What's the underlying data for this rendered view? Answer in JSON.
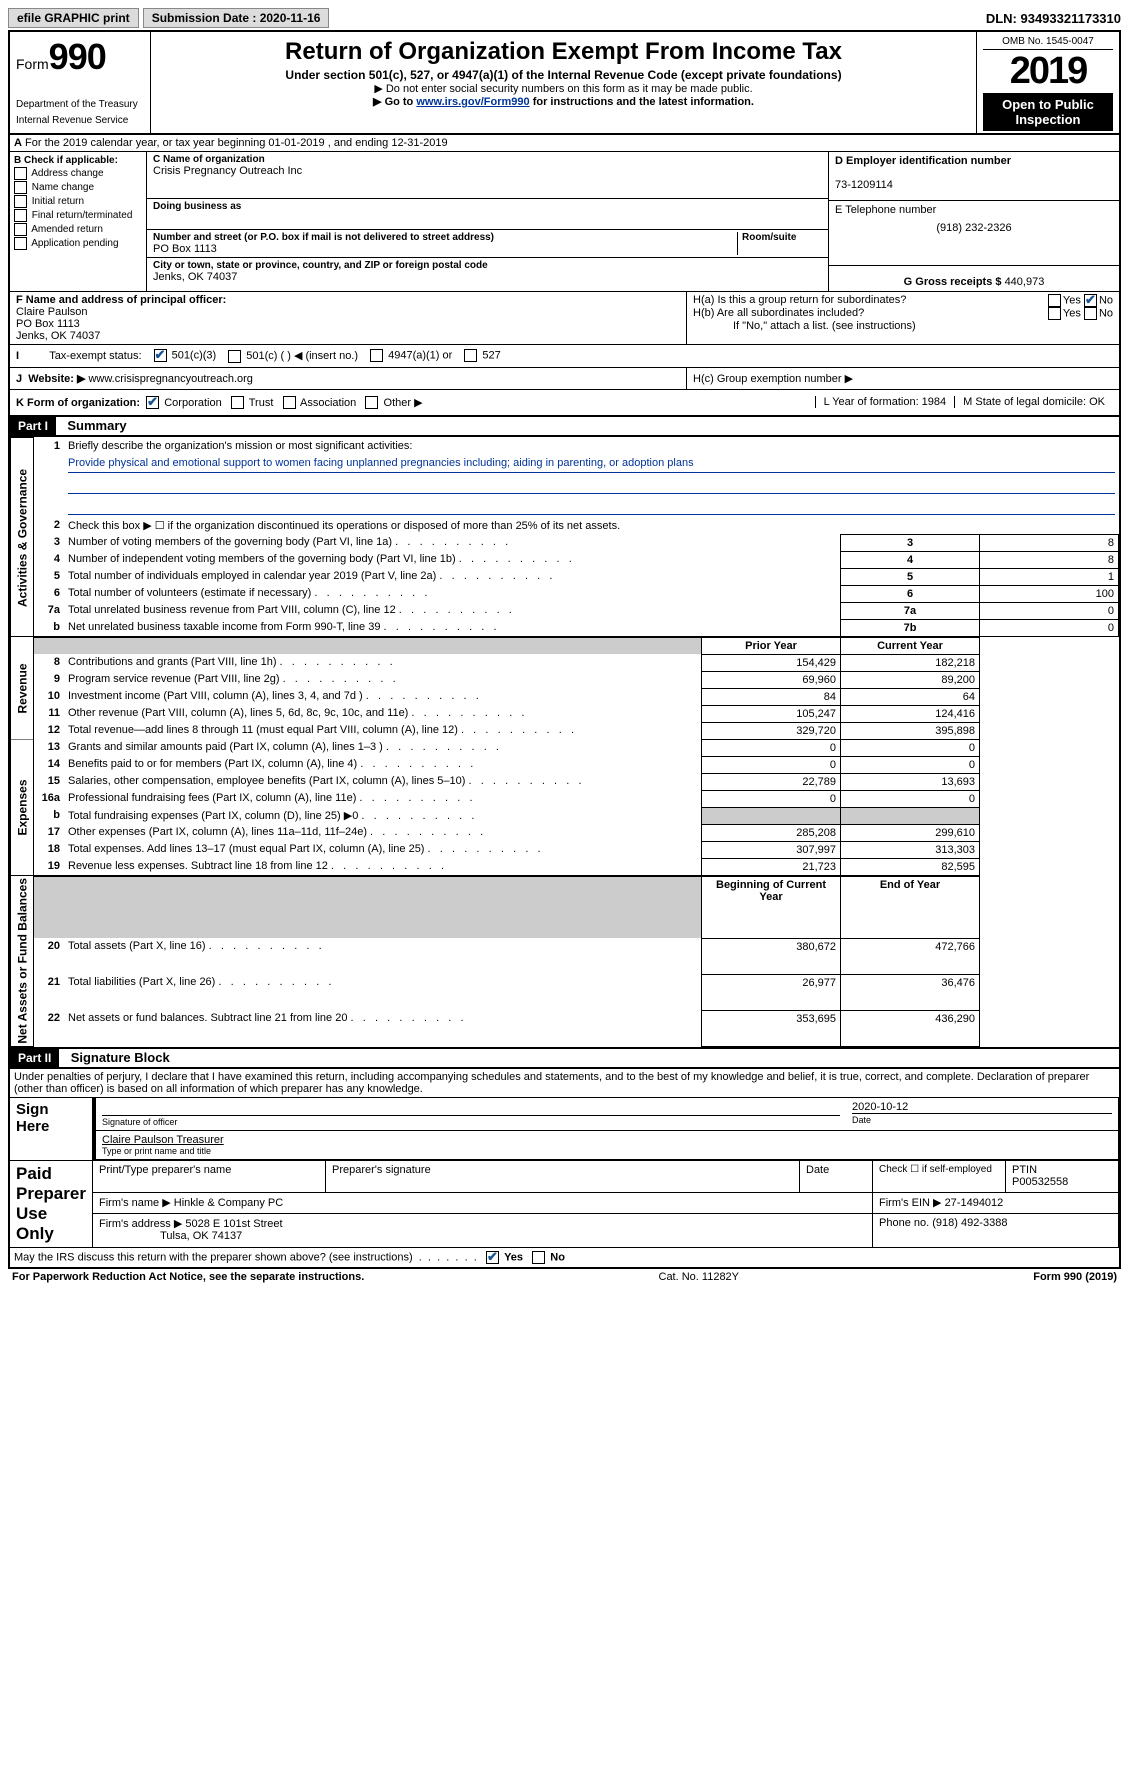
{
  "topbar": {
    "efile": "efile GRAPHIC print",
    "sub_label": "Submission Date : 2020-11-16",
    "dln": "DLN: 93493321173310"
  },
  "header": {
    "form_word": "Form",
    "form_num": "990",
    "dept1": "Department of the Treasury",
    "dept2": "Internal Revenue Service",
    "title": "Return of Organization Exempt From Income Tax",
    "sub1": "Under section 501(c), 527, or 4947(a)(1) of the Internal Revenue Code (except private foundations)",
    "sub2": "▶ Do not enter social security numbers on this form as it may be made public.",
    "sub3_pre": "▶ Go to ",
    "sub3_link": "www.irs.gov/Form990",
    "sub3_post": " for instructions and the latest information.",
    "omb": "OMB No. 1545-0047",
    "year": "2019",
    "open": "Open to Public Inspection"
  },
  "rowA": "For the 2019 calendar year, or tax year beginning 01-01-2019    , and ending 12-31-2019",
  "boxB": {
    "title": "B Check if applicable:",
    "items": [
      "Address change",
      "Name change",
      "Initial return",
      "Final return/terminated",
      "Amended return",
      "Application pending"
    ]
  },
  "boxC": {
    "c_lbl": "C Name of organization",
    "name": "Crisis Pregnancy Outreach Inc",
    "dba_lbl": "Doing business as",
    "addr_lbl": "Number and street (or P.O. box if mail is not delivered to street address)",
    "room_lbl": "Room/suite",
    "addr": "PO Box 1113",
    "city_lbl": "City or town, state or province, country, and ZIP or foreign postal code",
    "city": "Jenks, OK  74037"
  },
  "boxD": {
    "lbl": "D Employer identification number",
    "val": "73-1209114"
  },
  "boxE": {
    "lbl": "E Telephone number",
    "val": "(918) 232-2326"
  },
  "boxG": {
    "lbl": "G Gross receipts $",
    "val": "440,973"
  },
  "boxF": {
    "lbl": "F  Name and address of principal officer:",
    "name": "Claire Paulson",
    "addr1": "PO Box 1113",
    "addr2": "Jenks, OK  74037"
  },
  "boxH": {
    "a": "H(a)  Is this a group return for subordinates?",
    "b": "H(b)  Are all subordinates included?",
    "note": "If \"No,\" attach a list. (see instructions)",
    "c": "H(c)  Group exemption number ▶"
  },
  "rowI": {
    "lbl": "Tax-exempt status:",
    "opts": [
      "501(c)(3)",
      "501(c) (  ) ◀ (insert no.)",
      "4947(a)(1) or",
      "527"
    ]
  },
  "rowJ": {
    "lbl": "Website: ▶",
    "val": "  www.crisispregnancyoutreach.org"
  },
  "rowK": {
    "lbl": "K Form of organization:",
    "opts": [
      "Corporation",
      "Trust",
      "Association",
      "Other ▶"
    ],
    "L": "L Year of formation: 1984",
    "M": "M State of legal domicile: OK"
  },
  "part1": {
    "num": "Part I",
    "title": "Summary"
  },
  "summary": {
    "tab1": "Activities & Governance",
    "tab2": "Revenue",
    "tab3": "Expenses",
    "tab4": "Net Assets or Fund Balances",
    "q1": "Briefly describe the organization's mission or most significant activities:",
    "mission": "Provide physical and emotional support to women facing unplanned pregnancies including; aiding in parenting, or adoption plans",
    "q2": "Check this box ▶ ☐  if the organization discontinued its operations or disposed of more than 25% of its net assets.",
    "rows_gov": [
      {
        "n": "3",
        "t": "Number of voting members of the governing body (Part VI, line 1a)",
        "b": "3",
        "v": "8"
      },
      {
        "n": "4",
        "t": "Number of independent voting members of the governing body (Part VI, line 1b)",
        "b": "4",
        "v": "8"
      },
      {
        "n": "5",
        "t": "Total number of individuals employed in calendar year 2019 (Part V, line 2a)",
        "b": "5",
        "v": "1"
      },
      {
        "n": "6",
        "t": "Total number of volunteers (estimate if necessary)",
        "b": "6",
        "v": "100"
      },
      {
        "n": "7a",
        "t": "Total unrelated business revenue from Part VIII, column (C), line 12",
        "b": "7a",
        "v": "0"
      },
      {
        "n": "b",
        "t": "Net unrelated business taxable income from Form 990-T, line 39",
        "b": "7b",
        "v": "0"
      }
    ],
    "hdr_prior": "Prior Year",
    "hdr_curr": "Current Year",
    "rows_rev": [
      {
        "n": "8",
        "t": "Contributions and grants (Part VIII, line 1h)",
        "p": "154,429",
        "c": "182,218"
      },
      {
        "n": "9",
        "t": "Program service revenue (Part VIII, line 2g)",
        "p": "69,960",
        "c": "89,200"
      },
      {
        "n": "10",
        "t": "Investment income (Part VIII, column (A), lines 3, 4, and 7d )",
        "p": "84",
        "c": "64"
      },
      {
        "n": "11",
        "t": "Other revenue (Part VIII, column (A), lines 5, 6d, 8c, 9c, 10c, and 11e)",
        "p": "105,247",
        "c": "124,416"
      },
      {
        "n": "12",
        "t": "Total revenue—add lines 8 through 11 (must equal Part VIII, column (A), line 12)",
        "p": "329,720",
        "c": "395,898"
      }
    ],
    "rows_exp": [
      {
        "n": "13",
        "t": "Grants and similar amounts paid (Part IX, column (A), lines 1–3 )",
        "p": "0",
        "c": "0"
      },
      {
        "n": "14",
        "t": "Benefits paid to or for members (Part IX, column (A), line 4)",
        "p": "0",
        "c": "0"
      },
      {
        "n": "15",
        "t": "Salaries, other compensation, employee benefits (Part IX, column (A), lines 5–10)",
        "p": "22,789",
        "c": "13,693"
      },
      {
        "n": "16a",
        "t": "Professional fundraising fees (Part IX, column (A), line 11e)",
        "p": "0",
        "c": "0"
      },
      {
        "n": "b",
        "t": "Total fundraising expenses (Part IX, column (D), line 25) ▶0",
        "p": "",
        "c": "",
        "gray": true
      },
      {
        "n": "17",
        "t": "Other expenses (Part IX, column (A), lines 11a–11d, 11f–24e)",
        "p": "285,208",
        "c": "299,610"
      },
      {
        "n": "18",
        "t": "Total expenses. Add lines 13–17 (must equal Part IX, column (A), line 25)",
        "p": "307,997",
        "c": "313,303"
      },
      {
        "n": "19",
        "t": "Revenue less expenses. Subtract line 18 from line 12",
        "p": "21,723",
        "c": "82,595"
      }
    ],
    "hdr_beg": "Beginning of Current Year",
    "hdr_end": "End of Year",
    "rows_net": [
      {
        "n": "20",
        "t": "Total assets (Part X, line 16)",
        "p": "380,672",
        "c": "472,766"
      },
      {
        "n": "21",
        "t": "Total liabilities (Part X, line 26)",
        "p": "26,977",
        "c": "36,476"
      },
      {
        "n": "22",
        "t": "Net assets or fund balances. Subtract line 21 from line 20",
        "p": "353,695",
        "c": "436,290"
      }
    ]
  },
  "part2": {
    "num": "Part II",
    "title": "Signature Block"
  },
  "perjury": "Under penalties of perjury, I declare that I have examined this return, including accompanying schedules and statements, and to the best of my knowledge and belief, it is true, correct, and complete. Declaration of preparer (other than officer) is based on all information of which preparer has any knowledge.",
  "sign": {
    "here": "Sign Here",
    "sig_lbl": "Signature of officer",
    "date": "2020-10-12",
    "date_lbl": "Date",
    "name": "Claire Paulson Treasurer",
    "name_lbl": "Type or print name and title"
  },
  "paid": {
    "title": "Paid Preparer Use Only",
    "h1": "Print/Type preparer's name",
    "h2": "Preparer's signature",
    "h3": "Date",
    "h4_a": "Check ☐ if self-employed",
    "h4_b": "PTIN",
    "ptin": "P00532558",
    "firm_lbl": "Firm's name      ▶",
    "firm": "Hinkle & Company PC",
    "ein_lbl": "Firm's EIN ▶",
    "ein": "27-1494012",
    "addr_lbl": "Firm's address ▶",
    "addr1": "5028 E 101st Street",
    "addr2": "Tulsa, OK  74137",
    "phone_lbl": "Phone no.",
    "phone": "(918) 492-3388"
  },
  "discuss": "May the IRS discuss this return with the preparer shown above? (see instructions)",
  "footer": {
    "left": "For Paperwork Reduction Act Notice, see the separate instructions.",
    "mid": "Cat. No. 11282Y",
    "right": "Form 990 (2019)"
  }
}
